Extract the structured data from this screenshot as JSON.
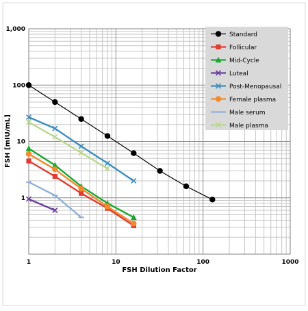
{
  "chart_data": {
    "type": "line",
    "title": "",
    "xlabel": "FSH Dilution Factor",
    "ylabel": "FSH [mIU/mL]",
    "x_scale": "log",
    "y_scale": "log",
    "xlim": [
      1,
      1000
    ],
    "ylim": [
      0.1,
      1000
    ],
    "x_tick_labels": [
      "1",
      "10",
      "100",
      "1000"
    ],
    "y_tick_labels": [
      "1",
      "10",
      "100",
      "1,000"
    ],
    "grid": true,
    "legend_position": "top-right",
    "series": [
      {
        "name": "Standard",
        "color": "#000000",
        "marker": "circle",
        "x": [
          1,
          2,
          4,
          8,
          16,
          32,
          64,
          128
        ],
        "y": [
          100,
          50,
          25,
          12.5,
          6.2,
          3.0,
          1.6,
          0.93
        ]
      },
      {
        "name": "Follicular",
        "color": "#e03c31",
        "marker": "square",
        "x": [
          1,
          2,
          4,
          8,
          16
        ],
        "y": [
          4.5,
          2.4,
          1.2,
          0.65,
          0.32
        ]
      },
      {
        "name": "Mid-Cycle",
        "color": "#1aa832",
        "marker": "triangle",
        "x": [
          1,
          2,
          4,
          8,
          16
        ],
        "y": [
          7.5,
          3.8,
          1.6,
          0.8,
          0.45
        ]
      },
      {
        "name": "Luteal",
        "color": "#6b3fa0",
        "marker": "x",
        "x": [
          1,
          2
        ],
        "y": [
          0.95,
          0.6
        ]
      },
      {
        "name": "Post-Menopausal",
        "color": "#3a8fbf",
        "marker": "x",
        "x": [
          1,
          2,
          4,
          8,
          16
        ],
        "y": [
          27,
          17,
          8.2,
          4.1,
          2.0
        ]
      },
      {
        "name": "Female plasma",
        "color": "#f28a2e",
        "marker": "circle",
        "x": [
          1,
          2,
          4,
          8,
          16
        ],
        "y": [
          6.0,
          3.2,
          1.45,
          0.7,
          0.35
        ]
      },
      {
        "name": "Male serum",
        "color": "#8fb0d8",
        "marker": "dash",
        "x": [
          1,
          2,
          4
        ],
        "y": [
          1.9,
          1.1,
          0.45
        ]
      },
      {
        "name": "Male plasma",
        "color": "#b9d88e",
        "marker": "x",
        "x": [
          1,
          2,
          4,
          8
        ],
        "y": [
          22,
          12,
          6.3,
          3.3
        ]
      }
    ]
  }
}
